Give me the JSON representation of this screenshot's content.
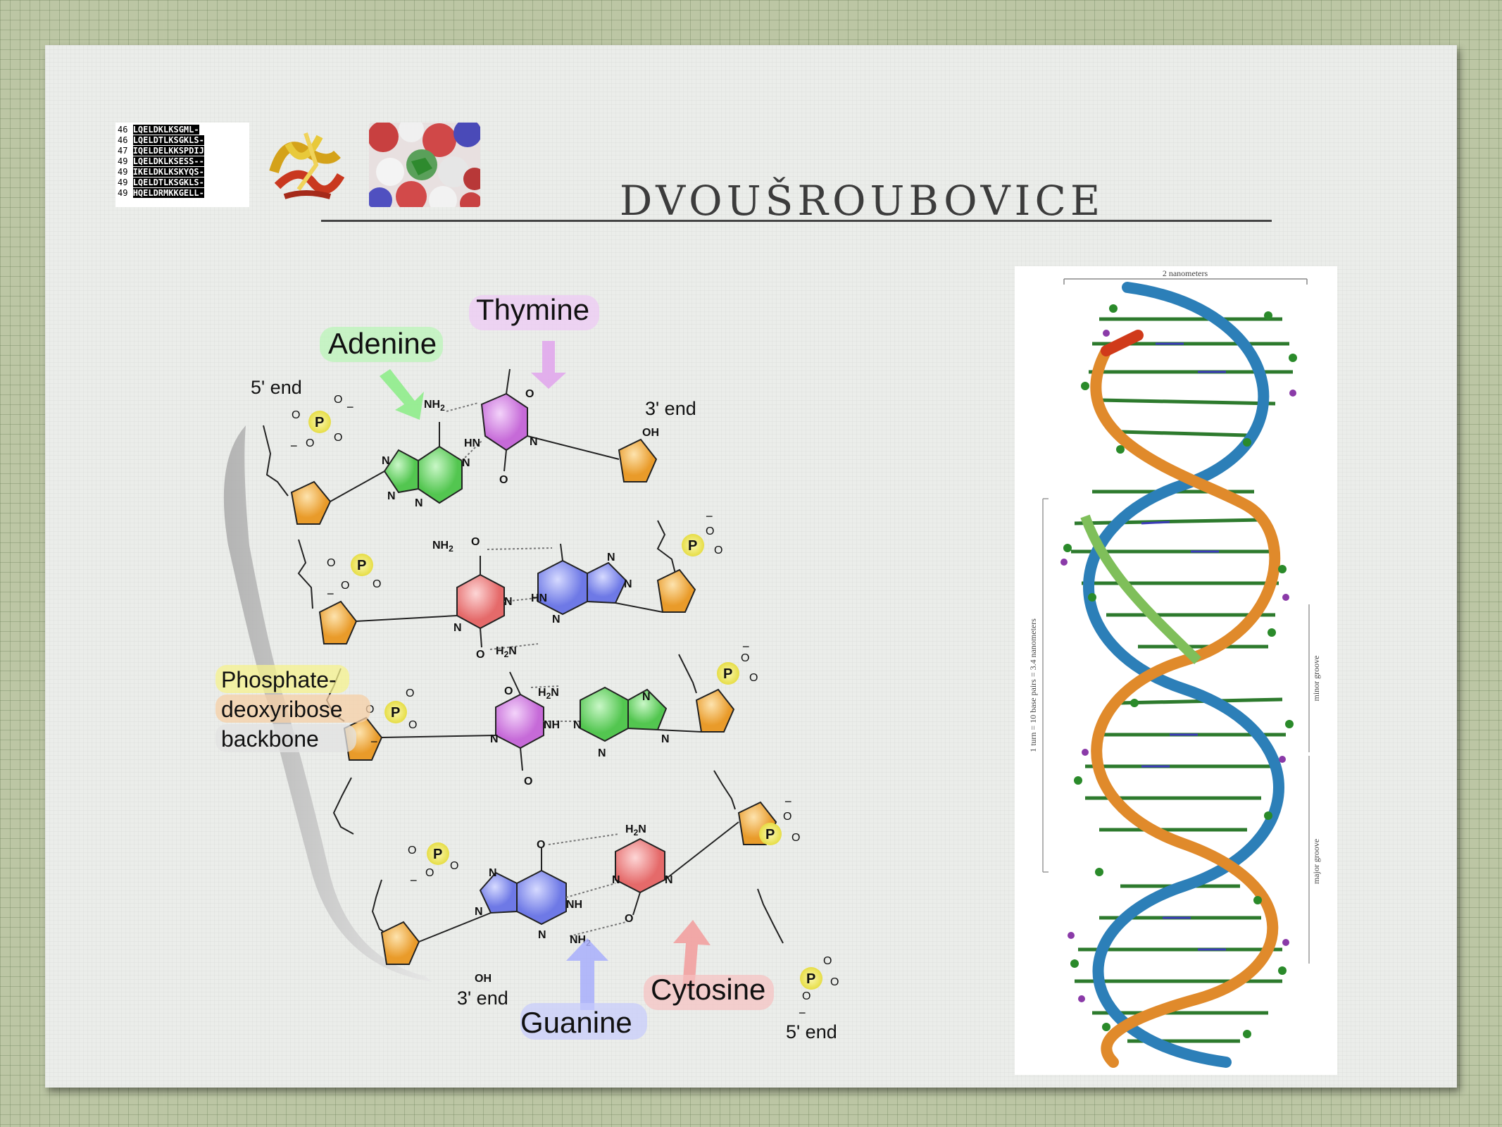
{
  "slide": {
    "title": "DVOUŠROUBOVICE"
  },
  "thumbnails": {
    "sequence_rows": [
      {
        "num": "46",
        "seq": "LQELDKLKSGML-"
      },
      {
        "num": "46",
        "seq": "LQELDTLKSGKLS-"
      },
      {
        "num": "47",
        "seq": "IQELDELKKSPDIJ"
      },
      {
        "num": "49",
        "seq": "LQELDKLKSESS--"
      },
      {
        "num": "49",
        "seq": "IKELDKLKSKYQS-"
      },
      {
        "num": "49",
        "seq": "LQELDTLKSGKLS-"
      },
      {
        "num": "49",
        "seq": "HQELDRMKKGELL-"
      }
    ]
  },
  "diagram": {
    "labels": {
      "adenine": "Adenine",
      "thymine": "Thymine",
      "guanine": "Guanine",
      "cytosine": "Cytosine",
      "five_end_top": "5' end",
      "three_end_top": "3' end",
      "three_end_bottom": "3' end",
      "five_end_bottom": "5' end",
      "backbone_1": "Phosphate-",
      "backbone_2": "deoxyribose",
      "backbone_3": "backbone"
    },
    "atoms": {
      "nh2": "NH",
      "sub2": "2",
      "h2n": "H",
      "n": "N",
      "o": "O",
      "oh": "OH",
      "p": "P",
      "hn": "HN",
      "nh": "NH",
      "minus": "−"
    },
    "colors": {
      "adenine": "#7de07a",
      "thymine": "#d98be8",
      "guanine": "#8c95f0",
      "cytosine": "#f08c8c",
      "sugar": "#f5b54a",
      "phosphate": "#f2ec6a"
    }
  },
  "helix_image": {
    "width_label": "2 nanometers",
    "turn_label": "1 turn = 10 base pairs = 3.4 nanometers",
    "minor_groove": "minor groove",
    "major_groove": "major groove"
  }
}
